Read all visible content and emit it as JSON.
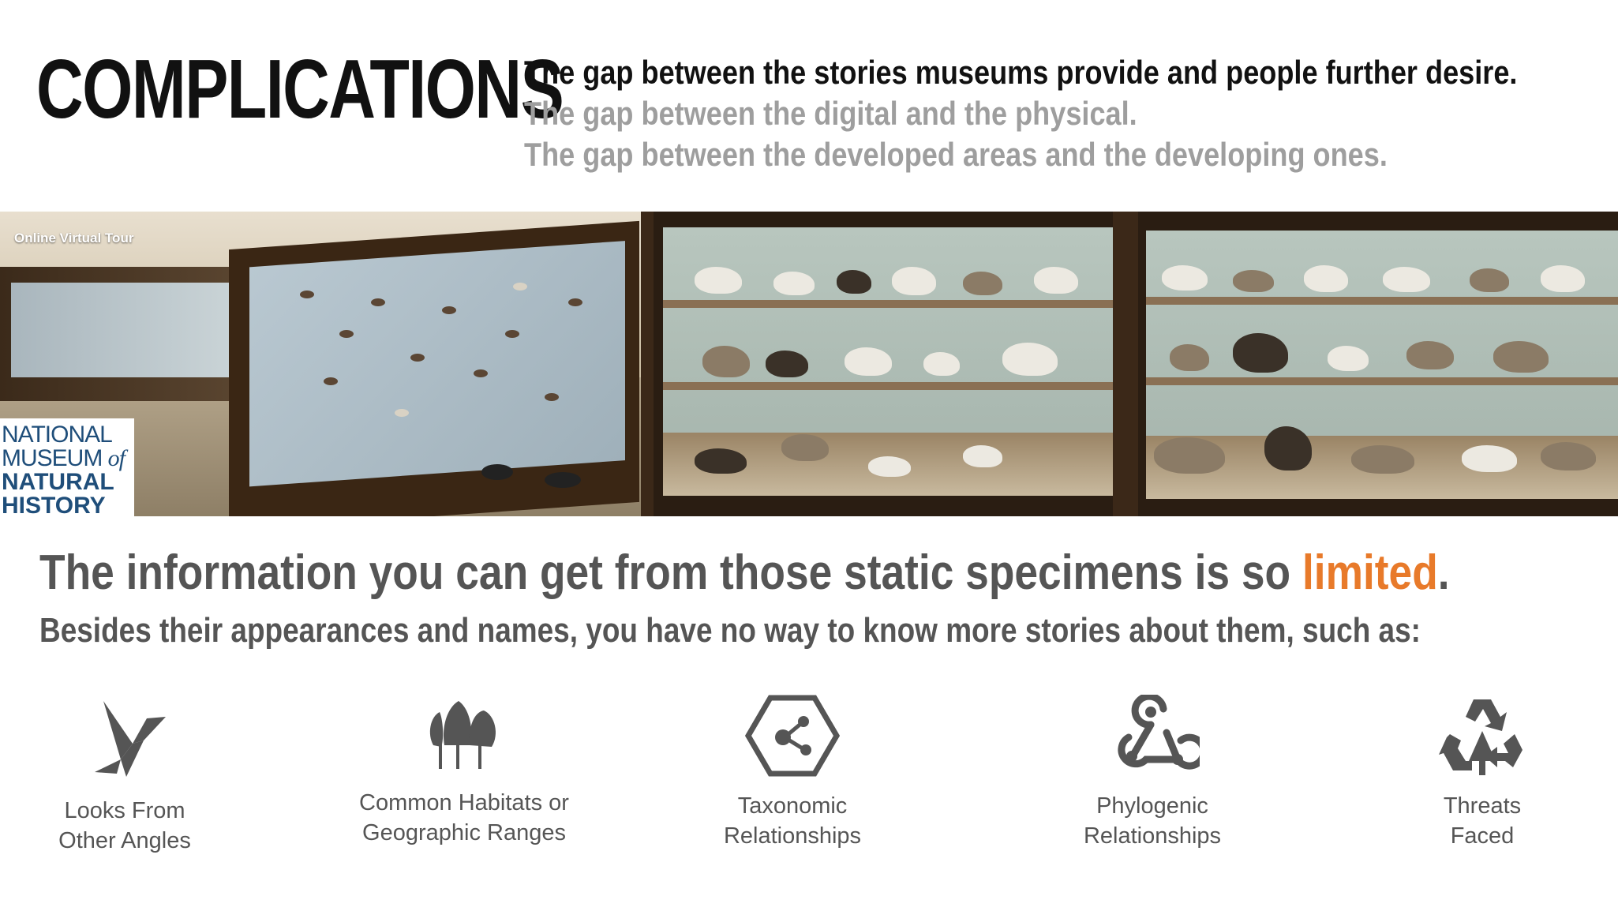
{
  "header": {
    "title": "COMPLICATIONS",
    "gaps": [
      "The gap between the stories museums provide and people further desire.",
      "The gap between the digital and the physical.",
      "The gap between the developed areas and the developing ones."
    ]
  },
  "photo": {
    "tour_label": "Online Virtual Tour",
    "logo": {
      "line1": "NATIONAL",
      "line2a": "MUSEUM ",
      "line2b": "of",
      "line3": "NATURAL",
      "line4": "HISTORY"
    }
  },
  "statement": {
    "headline_before": "The information you can get from those static specimens is so ",
    "headline_accent": "limited",
    "headline_after": ".",
    "subline": "Besides their appearances and names, you have no way to know more stories about them, such as:"
  },
  "features": [
    {
      "icon": "origami-bird-icon",
      "line1": "Looks From",
      "line2": "Other Angles"
    },
    {
      "icon": "trees-icon",
      "line1": "Common Habitats or",
      "line2": "Geographic Ranges"
    },
    {
      "icon": "hexagon-network-icon",
      "line1": "Taxonomic",
      "line2": "Relationships"
    },
    {
      "icon": "webhook-icon",
      "line1": "Phylogenic",
      "line2": "Relationships"
    },
    {
      "icon": "recycle-warning-icon",
      "line1": "Threats",
      "line2": "Faced"
    }
  ],
  "colors": {
    "accent": "#e87a2a",
    "heading": "#111111",
    "muted": "#9e9e9e",
    "body": "#555555",
    "logo": "#1f4e7a"
  }
}
